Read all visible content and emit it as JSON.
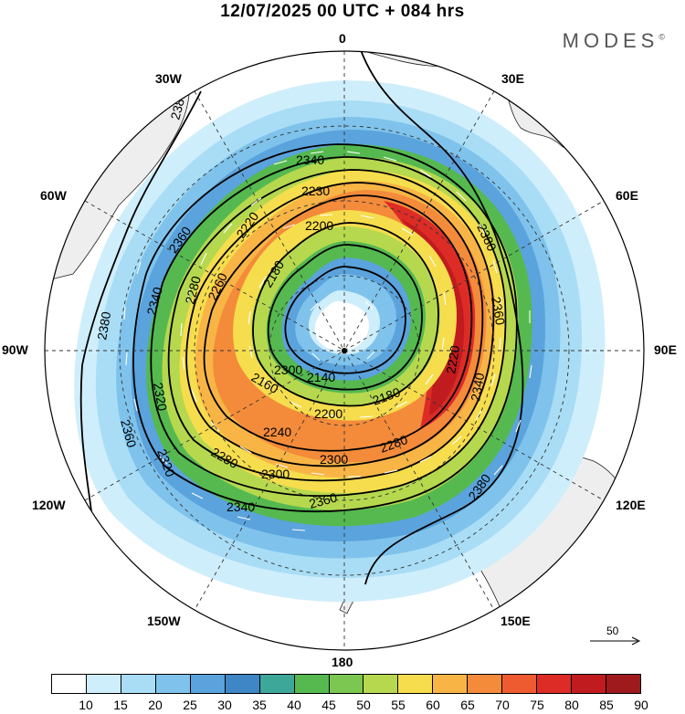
{
  "title": "12/07/2025  00 UTC  + 084 hrs",
  "brand": "MODES",
  "brand_mark": "©",
  "longitude_labels": {
    "n": "0",
    "ne": "30E",
    "e1": "60E",
    "e": "90E",
    "se1": "120E",
    "se": "150E",
    "s": "180",
    "sw": "150W",
    "w1": "120W",
    "w": "90W",
    "nw1": "60W",
    "nw": "30W"
  },
  "reference_vector": {
    "label": "50"
  },
  "colorbar": {
    "colors": [
      "#ffffff",
      "#cfeefb",
      "#a9ddf5",
      "#7fc3ec",
      "#5ba3dc",
      "#3f86c7",
      "#3da79a",
      "#55b94f",
      "#7cc751",
      "#b6d84e",
      "#f6dd4d",
      "#f8b545",
      "#f38b3a",
      "#ee5b30",
      "#dd2c26",
      "#c01c1f",
      "#9e1a1c"
    ],
    "labels": [
      "10",
      "15",
      "20",
      "25",
      "30",
      "35",
      "40",
      "45",
      "50",
      "55",
      "60",
      "65",
      "70",
      "75",
      "80",
      "85",
      "90"
    ]
  },
  "contour_labels": [
    "2380",
    "2380",
    "2380",
    "2380",
    "2360",
    "2360",
    "2360",
    "2360",
    "2340",
    "2340",
    "2340",
    "2340",
    "2320",
    "2320",
    "2300",
    "2300",
    "2300",
    "2280",
    "2280",
    "2280",
    "2260",
    "2240",
    "2230",
    "2220",
    "2220",
    "2200",
    "2200",
    "2180",
    "2180",
    "2160",
    "2140"
  ]
}
